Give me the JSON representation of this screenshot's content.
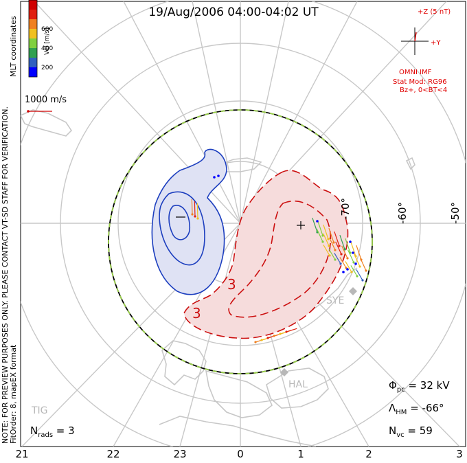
{
  "title": "19/Aug/2006 04:00-04:02 UT",
  "side_notes": {
    "preview": "NOTE: FOR PREVIEW PURPOSES ONLY. PLEASE CONTACT VT-SD STAFF FOR VERIFICATION.",
    "fit": "FitOrder: 8, mapEX format",
    "coords": "MLT coordinates"
  },
  "colorbar": {
    "label": "Vel [m/s]",
    "ticks": [
      "600",
      "400",
      "200"
    ],
    "colors": [
      "#0000ff",
      "#3060c0",
      "#30a050",
      "#80d040",
      "#f0c020",
      "#f08020",
      "#e02010",
      "#d00000"
    ]
  },
  "scale_vector": {
    "label": "1000 m/s"
  },
  "imf": {
    "z_label": "+Z (5 nT)",
    "y_label": "+Y",
    "source": "OMNI IMF",
    "model": "Stat Mod: RG96",
    "condition": "Bz+, 0<BT<4"
  },
  "lat_labels": [
    "-70°",
    "-60°",
    "-50°"
  ],
  "mlt_labels": [
    "21",
    "22",
    "23",
    "0",
    "1",
    "2",
    "3"
  ],
  "stations": [
    "SYE",
    "HAL",
    "TIG"
  ],
  "contour_labels": [
    "3",
    "3"
  ],
  "stats": {
    "phi_pc_sym": "Φ",
    "phi_pc_sub": "pc",
    "phi_pc_val": " = 32 kV",
    "lambda_sym": "Λ",
    "lambda_sub": "HM",
    "lambda_val": " = -66°",
    "nvc_sym": "N",
    "nvc_sub": "vc",
    "nvc_val": " = 59",
    "nrads_sym": "N",
    "nrads_sub": "rads",
    "nrads_val": " = 3"
  }
}
